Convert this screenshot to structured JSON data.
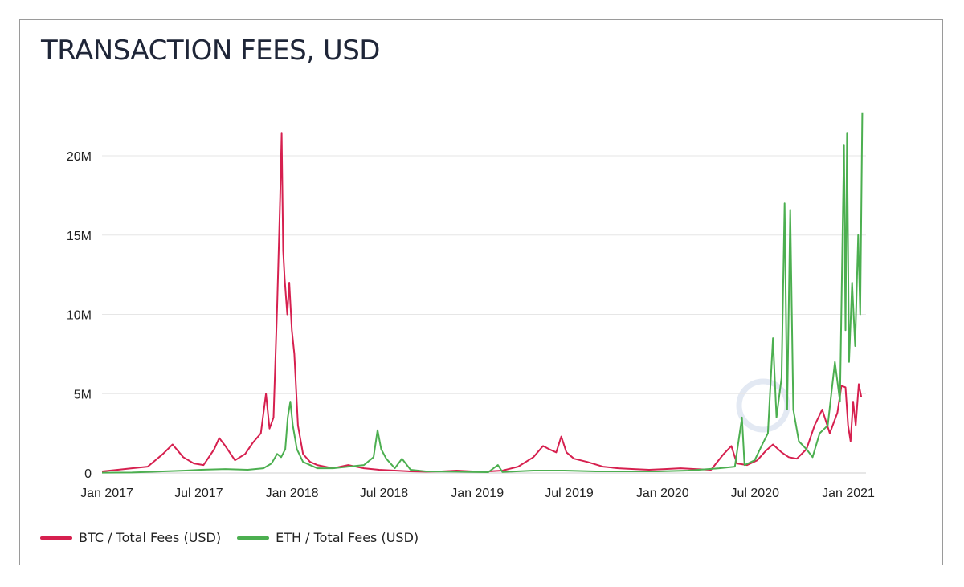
{
  "title": "TRANSACTION FEES, USD",
  "colors": {
    "btc": "#d6204f",
    "eth": "#4caf50",
    "grid": "#e6e6e6",
    "watermark": "#dce4f0"
  },
  "legend": {
    "btc": "BTC / Total Fees (USD)",
    "eth": "ETH / Total Fees (USD)"
  },
  "chart_data": {
    "type": "line",
    "title": "TRANSACTION FEES, USD",
    "xlabel": "",
    "ylabel": "",
    "xlim": [
      "2017-01-01",
      "2021-02-15"
    ],
    "ylim": [
      0,
      23000000
    ],
    "grid": "horizontal",
    "legend_position": "bottom-left",
    "y_ticks": [
      {
        "value": 0,
        "label": "0"
      },
      {
        "value": 5000000,
        "label": "5M"
      },
      {
        "value": 10000000,
        "label": "10M"
      },
      {
        "value": 15000000,
        "label": "15M"
      },
      {
        "value": 20000000,
        "label": "20M"
      }
    ],
    "x_ticks": [
      {
        "value": "2017-01-01",
        "label": "Jan 2017"
      },
      {
        "value": "2017-07-01",
        "label": "Jul 2017"
      },
      {
        "value": "2018-01-01",
        "label": "Jan 2018"
      },
      {
        "value": "2018-07-01",
        "label": "Jul 2018"
      },
      {
        "value": "2019-01-01",
        "label": "Jan 2019"
      },
      {
        "value": "2019-07-01",
        "label": "Jul 2019"
      },
      {
        "value": "2020-01-01",
        "label": "Jan 2020"
      },
      {
        "value": "2020-07-01",
        "label": "Jul 2020"
      },
      {
        "value": "2021-01-01",
        "label": "Jan 2021"
      }
    ],
    "series": [
      {
        "name": "BTC / Total Fees (USD)",
        "points": [
          [
            "2017-01-01",
            100000
          ],
          [
            "2017-02-01",
            200000
          ],
          [
            "2017-03-01",
            300000
          ],
          [
            "2017-04-01",
            400000
          ],
          [
            "2017-05-01",
            1200000
          ],
          [
            "2017-05-20",
            1800000
          ],
          [
            "2017-06-10",
            1000000
          ],
          [
            "2017-07-01",
            600000
          ],
          [
            "2017-07-20",
            500000
          ],
          [
            "2017-08-10",
            1500000
          ],
          [
            "2017-08-20",
            2200000
          ],
          [
            "2017-09-01",
            1700000
          ],
          [
            "2017-09-20",
            800000
          ],
          [
            "2017-10-10",
            1200000
          ],
          [
            "2017-10-25",
            1900000
          ],
          [
            "2017-11-10",
            2500000
          ],
          [
            "2017-11-20",
            5000000
          ],
          [
            "2017-11-27",
            2800000
          ],
          [
            "2017-12-05",
            3500000
          ],
          [
            "2017-12-12",
            10500000
          ],
          [
            "2017-12-18",
            17300000
          ],
          [
            "2017-12-21",
            21400000
          ],
          [
            "2017-12-24",
            14000000
          ],
          [
            "2017-12-27",
            12200000
          ],
          [
            "2018-01-01",
            10000000
          ],
          [
            "2018-01-05",
            12000000
          ],
          [
            "2018-01-10",
            9000000
          ],
          [
            "2018-01-15",
            7500000
          ],
          [
            "2018-01-22",
            3000000
          ],
          [
            "2018-02-01",
            1200000
          ],
          [
            "2018-02-15",
            700000
          ],
          [
            "2018-03-01",
            500000
          ],
          [
            "2018-04-01",
            300000
          ],
          [
            "2018-05-01",
            500000
          ],
          [
            "2018-06-01",
            300000
          ],
          [
            "2018-07-01",
            200000
          ],
          [
            "2018-08-01",
            150000
          ],
          [
            "2018-09-01",
            100000
          ],
          [
            "2018-10-01",
            80000
          ],
          [
            "2018-11-01",
            100000
          ],
          [
            "2018-12-01",
            150000
          ],
          [
            "2019-01-01",
            100000
          ],
          [
            "2019-02-01",
            100000
          ],
          [
            "2019-03-01",
            150000
          ],
          [
            "2019-04-01",
            400000
          ],
          [
            "2019-05-01",
            1000000
          ],
          [
            "2019-05-20",
            1700000
          ],
          [
            "2019-06-01",
            1500000
          ],
          [
            "2019-06-15",
            1300000
          ],
          [
            "2019-06-25",
            2300000
          ],
          [
            "2019-07-05",
            1300000
          ],
          [
            "2019-07-20",
            900000
          ],
          [
            "2019-08-15",
            700000
          ],
          [
            "2019-09-15",
            400000
          ],
          [
            "2019-10-15",
            300000
          ],
          [
            "2019-11-15",
            250000
          ],
          [
            "2019-12-15",
            200000
          ],
          [
            "2020-01-15",
            250000
          ],
          [
            "2020-02-15",
            300000
          ],
          [
            "2020-03-15",
            250000
          ],
          [
            "2020-04-15",
            200000
          ],
          [
            "2020-05-10",
            1200000
          ],
          [
            "2020-05-25",
            1700000
          ],
          [
            "2020-06-05",
            600000
          ],
          [
            "2020-06-25",
            500000
          ],
          [
            "2020-07-15",
            800000
          ],
          [
            "2020-08-01",
            1400000
          ],
          [
            "2020-08-15",
            1800000
          ],
          [
            "2020-09-01",
            1300000
          ],
          [
            "2020-09-15",
            1000000
          ],
          [
            "2020-10-01",
            900000
          ],
          [
            "2020-10-20",
            1500000
          ],
          [
            "2020-11-05",
            3000000
          ],
          [
            "2020-11-20",
            4000000
          ],
          [
            "2020-12-05",
            2500000
          ],
          [
            "2020-12-20",
            3800000
          ],
          [
            "2020-12-28",
            5500000
          ],
          [
            "2021-01-05",
            5400000
          ],
          [
            "2021-01-10",
            3000000
          ],
          [
            "2021-01-15",
            2000000
          ],
          [
            "2021-01-20",
            4500000
          ],
          [
            "2021-01-25",
            3000000
          ],
          [
            "2021-01-31",
            5600000
          ],
          [
            "2021-02-05",
            4800000
          ]
        ]
      },
      {
        "name": "ETH / Total Fees (USD)",
        "points": [
          [
            "2017-01-01",
            20000
          ],
          [
            "2017-03-01",
            30000
          ],
          [
            "2017-05-01",
            100000
          ],
          [
            "2017-06-15",
            150000
          ],
          [
            "2017-07-15",
            200000
          ],
          [
            "2017-09-01",
            250000
          ],
          [
            "2017-10-15",
            200000
          ],
          [
            "2017-11-15",
            300000
          ],
          [
            "2017-12-01",
            600000
          ],
          [
            "2017-12-12",
            1200000
          ],
          [
            "2017-12-20",
            1000000
          ],
          [
            "2017-12-28",
            1500000
          ],
          [
            "2018-01-02",
            3500000
          ],
          [
            "2018-01-07",
            4500000
          ],
          [
            "2018-01-12",
            3000000
          ],
          [
            "2018-01-20",
            1500000
          ],
          [
            "2018-02-01",
            700000
          ],
          [
            "2018-03-01",
            300000
          ],
          [
            "2018-04-01",
            300000
          ],
          [
            "2018-05-01",
            400000
          ],
          [
            "2018-06-01",
            500000
          ],
          [
            "2018-06-20",
            1000000
          ],
          [
            "2018-06-28",
            2700000
          ],
          [
            "2018-07-05",
            1500000
          ],
          [
            "2018-07-15",
            900000
          ],
          [
            "2018-08-01",
            300000
          ],
          [
            "2018-08-15",
            900000
          ],
          [
            "2018-09-01",
            200000
          ],
          [
            "2018-10-01",
            100000
          ],
          [
            "2018-12-01",
            80000
          ],
          [
            "2019-01-01",
            60000
          ],
          [
            "2019-02-01",
            50000
          ],
          [
            "2019-02-20",
            500000
          ],
          [
            "2019-03-01",
            60000
          ],
          [
            "2019-05-01",
            150000
          ],
          [
            "2019-07-01",
            150000
          ],
          [
            "2019-09-01",
            100000
          ],
          [
            "2019-11-01",
            100000
          ],
          [
            "2020-01-01",
            100000
          ],
          [
            "2020-03-01",
            150000
          ],
          [
            "2020-05-01",
            300000
          ],
          [
            "2020-06-01",
            400000
          ],
          [
            "2020-06-15",
            3500000
          ],
          [
            "2020-06-20",
            500000
          ],
          [
            "2020-07-10",
            800000
          ],
          [
            "2020-07-25",
            1800000
          ],
          [
            "2020-08-05",
            2500000
          ],
          [
            "2020-08-15",
            8500000
          ],
          [
            "2020-08-22",
            3500000
          ],
          [
            "2020-09-01",
            6000000
          ],
          [
            "2020-09-07",
            17000000
          ],
          [
            "2020-09-12",
            4000000
          ],
          [
            "2020-09-18",
            16600000
          ],
          [
            "2020-09-24",
            4000000
          ],
          [
            "2020-10-05",
            2000000
          ],
          [
            "2020-10-20",
            1500000
          ],
          [
            "2020-11-01",
            1000000
          ],
          [
            "2020-11-15",
            2500000
          ],
          [
            "2020-12-01",
            3000000
          ],
          [
            "2020-12-15",
            7000000
          ],
          [
            "2020-12-25",
            4500000
          ],
          [
            "2021-01-02",
            20700000
          ],
          [
            "2021-01-05",
            9000000
          ],
          [
            "2021-01-08",
            21400000
          ],
          [
            "2021-01-12",
            7000000
          ],
          [
            "2021-01-18",
            12000000
          ],
          [
            "2021-01-24",
            8000000
          ],
          [
            "2021-01-30",
            15000000
          ],
          [
            "2021-02-03",
            10000000
          ],
          [
            "2021-02-07",
            22700000
          ]
        ]
      }
    ]
  }
}
